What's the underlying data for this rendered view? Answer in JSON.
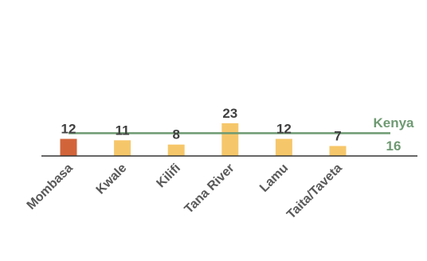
{
  "chart_data": {
    "type": "bar",
    "categories": [
      "Mombasa",
      "Kwale",
      "Kilifi",
      "Tana River",
      "Lamu",
      "Taita/Taveta"
    ],
    "values": [
      12,
      11,
      8,
      23,
      12,
      7
    ],
    "value_labels": [
      "12",
      "11",
      "8",
      "23",
      "12",
      "7"
    ],
    "highlight_index": 0,
    "colors": {
      "highlight": "#d2643a",
      "bar": "#f6c76a",
      "reference": "#6e9a72",
      "axis": "#333333"
    },
    "reference_line": {
      "value": 16,
      "label_name": "Kenya",
      "label_value": "16"
    },
    "ylim": [
      0,
      23
    ]
  }
}
